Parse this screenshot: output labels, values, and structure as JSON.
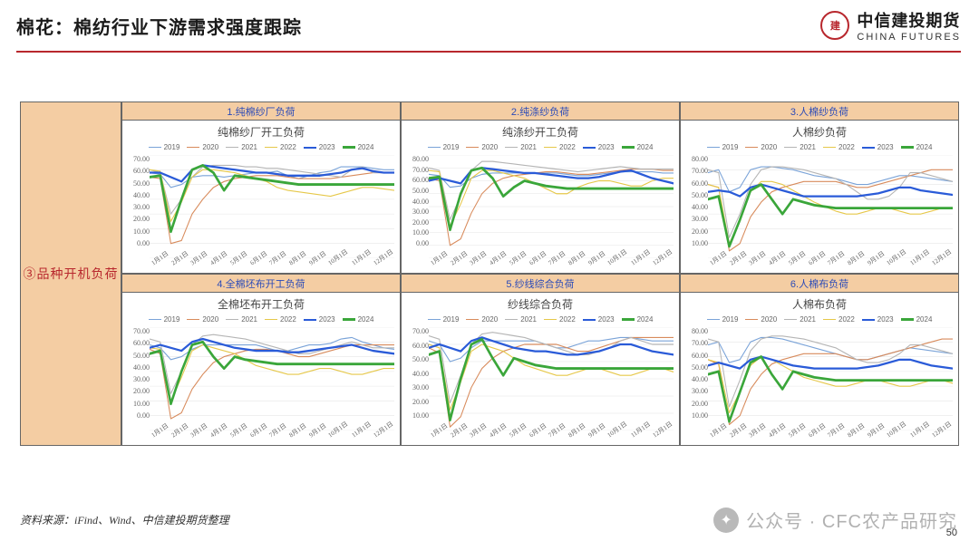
{
  "header": {
    "title": "棉花：棉纺行业下游需求强度跟踪",
    "brand_cn": "中信建投期货",
    "brand_en": "CHINA FUTURES",
    "accent_color": "#b8272d"
  },
  "side": {
    "label": "③品种开机负荷"
  },
  "legend": {
    "years": [
      "2019",
      "2020",
      "2021",
      "2022",
      "2023",
      "2024"
    ],
    "colors": [
      "#7aa3d8",
      "#d88b5c",
      "#b5b5b5",
      "#e6c84a",
      "#2a5bd8",
      "#3aa63a"
    ],
    "weights": [
      1,
      1,
      1,
      1,
      2,
      2.5
    ]
  },
  "axis": {
    "x_labels": [
      "1月1日",
      "2月1日",
      "3月1日",
      "4月1日",
      "5月1日",
      "6月1日",
      "7月1日",
      "8月1日",
      "9月1日",
      "10月1日",
      "11月1日",
      "12月1日"
    ],
    "bg": "#ffffff",
    "grid": "#e6e6e6"
  },
  "charts": [
    {
      "tab": "1.纯棉纱厂负荷",
      "title": "纯棉纱厂开工负荷",
      "ymin": 0,
      "ymax": 70,
      "ystep": 10,
      "series": [
        [
          58,
          57,
          48,
          50,
          55,
          56,
          56,
          55,
          56,
          57,
          58,
          58,
          59,
          56,
          54,
          56,
          58,
          59,
          62,
          62,
          62,
          61,
          60,
          60
        ],
        [
          55,
          54,
          10,
          12,
          30,
          40,
          48,
          52,
          54,
          55,
          56,
          56,
          56,
          55,
          54,
          54,
          54,
          54,
          55,
          56,
          57,
          58,
          58,
          58
        ],
        [
          60,
          58,
          30,
          40,
          55,
          62,
          63,
          63,
          63,
          62,
          62,
          61,
          61,
          60,
          59,
          58,
          57,
          56,
          55,
          60,
          62,
          58,
          58,
          58
        ],
        [
          60,
          59,
          25,
          38,
          55,
          60,
          60,
          59,
          58,
          56,
          54,
          52,
          48,
          46,
          45,
          44,
          43,
          42,
          44,
          46,
          48,
          48,
          47,
          46
        ],
        [
          58,
          58,
          55,
          52,
          60,
          63,
          62,
          61,
          60,
          59,
          58,
          58,
          57,
          56,
          56,
          56,
          56,
          57,
          58,
          60,
          61,
          59,
          58,
          58
        ],
        [
          55,
          56,
          18,
          40,
          60,
          63,
          58,
          46,
          56,
          55,
          54,
          53,
          52,
          51,
          50,
          50,
          50,
          50,
          50,
          50,
          50,
          50,
          50,
          50
        ]
      ]
    },
    {
      "tab": "2.纯涤纱负荷",
      "title": "纯涤纱开工负荷",
      "ymin": 0,
      "ymax": 80,
      "ystep": 10,
      "series": [
        [
          65,
          64,
          55,
          56,
          62,
          65,
          66,
          66,
          66,
          66,
          66,
          66,
          66,
          65,
          64,
          64,
          65,
          66,
          67,
          67,
          67,
          67,
          66,
          66
        ],
        [
          62,
          60,
          10,
          15,
          35,
          50,
          58,
          62,
          64,
          65,
          66,
          67,
          67,
          66,
          65,
          65,
          66,
          67,
          68,
          69,
          69,
          69,
          68,
          68
        ],
        [
          70,
          68,
          30,
          48,
          68,
          75,
          75,
          74,
          73,
          72,
          71,
          70,
          69,
          68,
          67,
          68,
          69,
          70,
          71,
          70,
          69,
          69,
          69,
          69
        ],
        [
          68,
          67,
          25,
          42,
          62,
          68,
          68,
          66,
          64,
          62,
          58,
          54,
          50,
          50,
          55,
          58,
          60,
          60,
          58,
          56,
          56,
          60,
          62,
          62
        ],
        [
          60,
          62,
          60,
          58,
          68,
          70,
          69,
          68,
          67,
          66,
          66,
          65,
          64,
          63,
          62,
          62,
          63,
          65,
          67,
          68,
          65,
          62,
          60,
          58
        ],
        [
          62,
          63,
          22,
          50,
          68,
          70,
          62,
          48,
          55,
          60,
          58,
          56,
          55,
          54,
          54,
          54,
          54,
          54,
          54,
          54,
          54,
          54,
          54,
          54
        ]
      ]
    },
    {
      "tab": "3.人棉纱负荷",
      "title": "人棉纱负荷",
      "ymin": 10,
      "ymax": 80,
      "ystep": 10,
      "series": [
        [
          68,
          70,
          55,
          58,
          70,
          72,
          72,
          71,
          70,
          68,
          66,
          65,
          64,
          62,
          60,
          60,
          62,
          64,
          66,
          66,
          65,
          64,
          63,
          62
        ],
        [
          60,
          58,
          15,
          20,
          38,
          48,
          55,
          58,
          60,
          62,
          62,
          62,
          62,
          60,
          58,
          58,
          60,
          62,
          64,
          66,
          68,
          70,
          70,
          70
        ],
        [
          70,
          68,
          24,
          40,
          60,
          70,
          72,
          72,
          71,
          70,
          68,
          66,
          64,
          60,
          55,
          50,
          50,
          52,
          58,
          68,
          68,
          66,
          64,
          62
        ],
        [
          60,
          58,
          20,
          35,
          55,
          62,
          62,
          60,
          56,
          52,
          48,
          45,
          42,
          40,
          40,
          42,
          44,
          44,
          42,
          40,
          40,
          42,
          44,
          44
        ],
        [
          55,
          56,
          55,
          52,
          58,
          60,
          58,
          56,
          54,
          52,
          52,
          52,
          52,
          52,
          52,
          53,
          54,
          56,
          58,
          58,
          56,
          55,
          54,
          53
        ],
        [
          50,
          52,
          18,
          36,
          56,
          60,
          50,
          40,
          50,
          48,
          46,
          45,
          44,
          44,
          44,
          44,
          44,
          44,
          44,
          44,
          44,
          44,
          44,
          44
        ]
      ]
    },
    {
      "tab": "4.全棉坯布开工负荷",
      "title": "全棉坯布开工负荷",
      "ymin": 0,
      "ymax": 70,
      "ystep": 10,
      "series": [
        [
          58,
          56,
          48,
          50,
          55,
          58,
          58,
          58,
          58,
          58,
          58,
          56,
          54,
          54,
          56,
          58,
          58,
          59,
          62,
          63,
          60,
          58,
          56,
          55
        ],
        [
          55,
          52,
          8,
          12,
          28,
          38,
          46,
          50,
          52,
          54,
          55,
          55,
          54,
          52,
          50,
          50,
          52,
          54,
          56,
          58,
          58,
          58,
          58,
          58
        ],
        [
          62,
          60,
          25,
          40,
          58,
          64,
          65,
          64,
          63,
          62,
          60,
          58,
          56,
          54,
          52,
          52,
          54,
          56,
          58,
          60,
          58,
          56,
          56,
          56
        ],
        [
          56,
          55,
          20,
          36,
          54,
          58,
          56,
          54,
          52,
          48,
          44,
          42,
          40,
          38,
          38,
          40,
          42,
          42,
          40,
          38,
          38,
          40,
          42,
          42
        ],
        [
          56,
          58,
          56,
          54,
          60,
          62,
          60,
          58,
          56,
          55,
          54,
          54,
          54,
          53,
          53,
          54,
          55,
          56,
          57,
          58,
          56,
          54,
          53,
          52
        ],
        [
          52,
          54,
          18,
          40,
          58,
          60,
          50,
          42,
          50,
          48,
          47,
          46,
          45,
          45,
          45,
          45,
          45,
          45,
          45,
          45,
          45,
          45,
          45,
          45
        ]
      ]
    },
    {
      "tab": "5.纱线综合负荷",
      "title": "纱线综合负荷",
      "ymin": 10,
      "ymax": 70,
      "ystep": 10,
      "series": [
        [
          62,
          60,
          50,
          52,
          58,
          62,
          62,
          62,
          62,
          62,
          62,
          60,
          58,
          58,
          60,
          62,
          62,
          63,
          64,
          64,
          63,
          62,
          62,
          62
        ],
        [
          58,
          55,
          12,
          18,
          35,
          46,
          52,
          56,
          58,
          60,
          60,
          60,
          60,
          58,
          56,
          56,
          58,
          60,
          62,
          64,
          64,
          64,
          64,
          64
        ],
        [
          65,
          63,
          26,
          42,
          60,
          66,
          67,
          66,
          65,
          64,
          62,
          60,
          58,
          56,
          54,
          54,
          56,
          58,
          62,
          64,
          62,
          60,
          60,
          60
        ],
        [
          60,
          58,
          22,
          38,
          56,
          60,
          58,
          56,
          52,
          48,
          46,
          44,
          42,
          42,
          44,
          46,
          46,
          44,
          42,
          42,
          44,
          46,
          46,
          44
        ],
        [
          58,
          60,
          58,
          56,
          62,
          64,
          62,
          60,
          58,
          57,
          56,
          56,
          55,
          54,
          54,
          55,
          56,
          58,
          60,
          60,
          58,
          56,
          55,
          54
        ],
        [
          54,
          56,
          16,
          40,
          60,
          63,
          52,
          42,
          52,
          50,
          48,
          47,
          46,
          46,
          46,
          46,
          46,
          46,
          46,
          46,
          46,
          46,
          46,
          46
        ]
      ]
    },
    {
      "tab": "6.人棉布负荷",
      "title": "人棉布负荷",
      "ymin": 10,
      "ymax": 80,
      "ystep": 10,
      "series": [
        [
          68,
          70,
          56,
          58,
          70,
          73,
          73,
          72,
          70,
          68,
          66,
          64,
          62,
          60,
          58,
          58,
          60,
          62,
          64,
          66,
          65,
          64,
          63,
          62
        ],
        [
          58,
          55,
          14,
          20,
          38,
          48,
          55,
          58,
          60,
          62,
          62,
          62,
          62,
          60,
          58,
          58,
          60,
          62,
          64,
          66,
          68,
          70,
          72,
          72
        ],
        [
          72,
          70,
          26,
          44,
          64,
          72,
          74,
          74,
          73,
          72,
          70,
          68,
          66,
          62,
          58,
          56,
          56,
          58,
          62,
          68,
          68,
          66,
          64,
          62
        ],
        [
          58,
          56,
          22,
          36,
          54,
          60,
          58,
          54,
          50,
          46,
          44,
          42,
          40,
          40,
          42,
          44,
          44,
          42,
          40,
          40,
          42,
          44,
          44,
          42
        ],
        [
          54,
          56,
          54,
          52,
          58,
          60,
          58,
          56,
          54,
          53,
          52,
          52,
          52,
          52,
          52,
          53,
          54,
          56,
          58,
          58,
          56,
          54,
          53,
          52
        ],
        [
          48,
          50,
          16,
          36,
          56,
          60,
          48,
          38,
          50,
          48,
          46,
          45,
          44,
          44,
          44,
          44,
          44,
          44,
          44,
          44,
          44,
          44,
          44,
          44
        ]
      ]
    }
  ],
  "source": "资料来源：iFind、Wind、中信建投期货整理",
  "watermark": "公众号 · CFC农产品研究",
  "page_number": "50"
}
